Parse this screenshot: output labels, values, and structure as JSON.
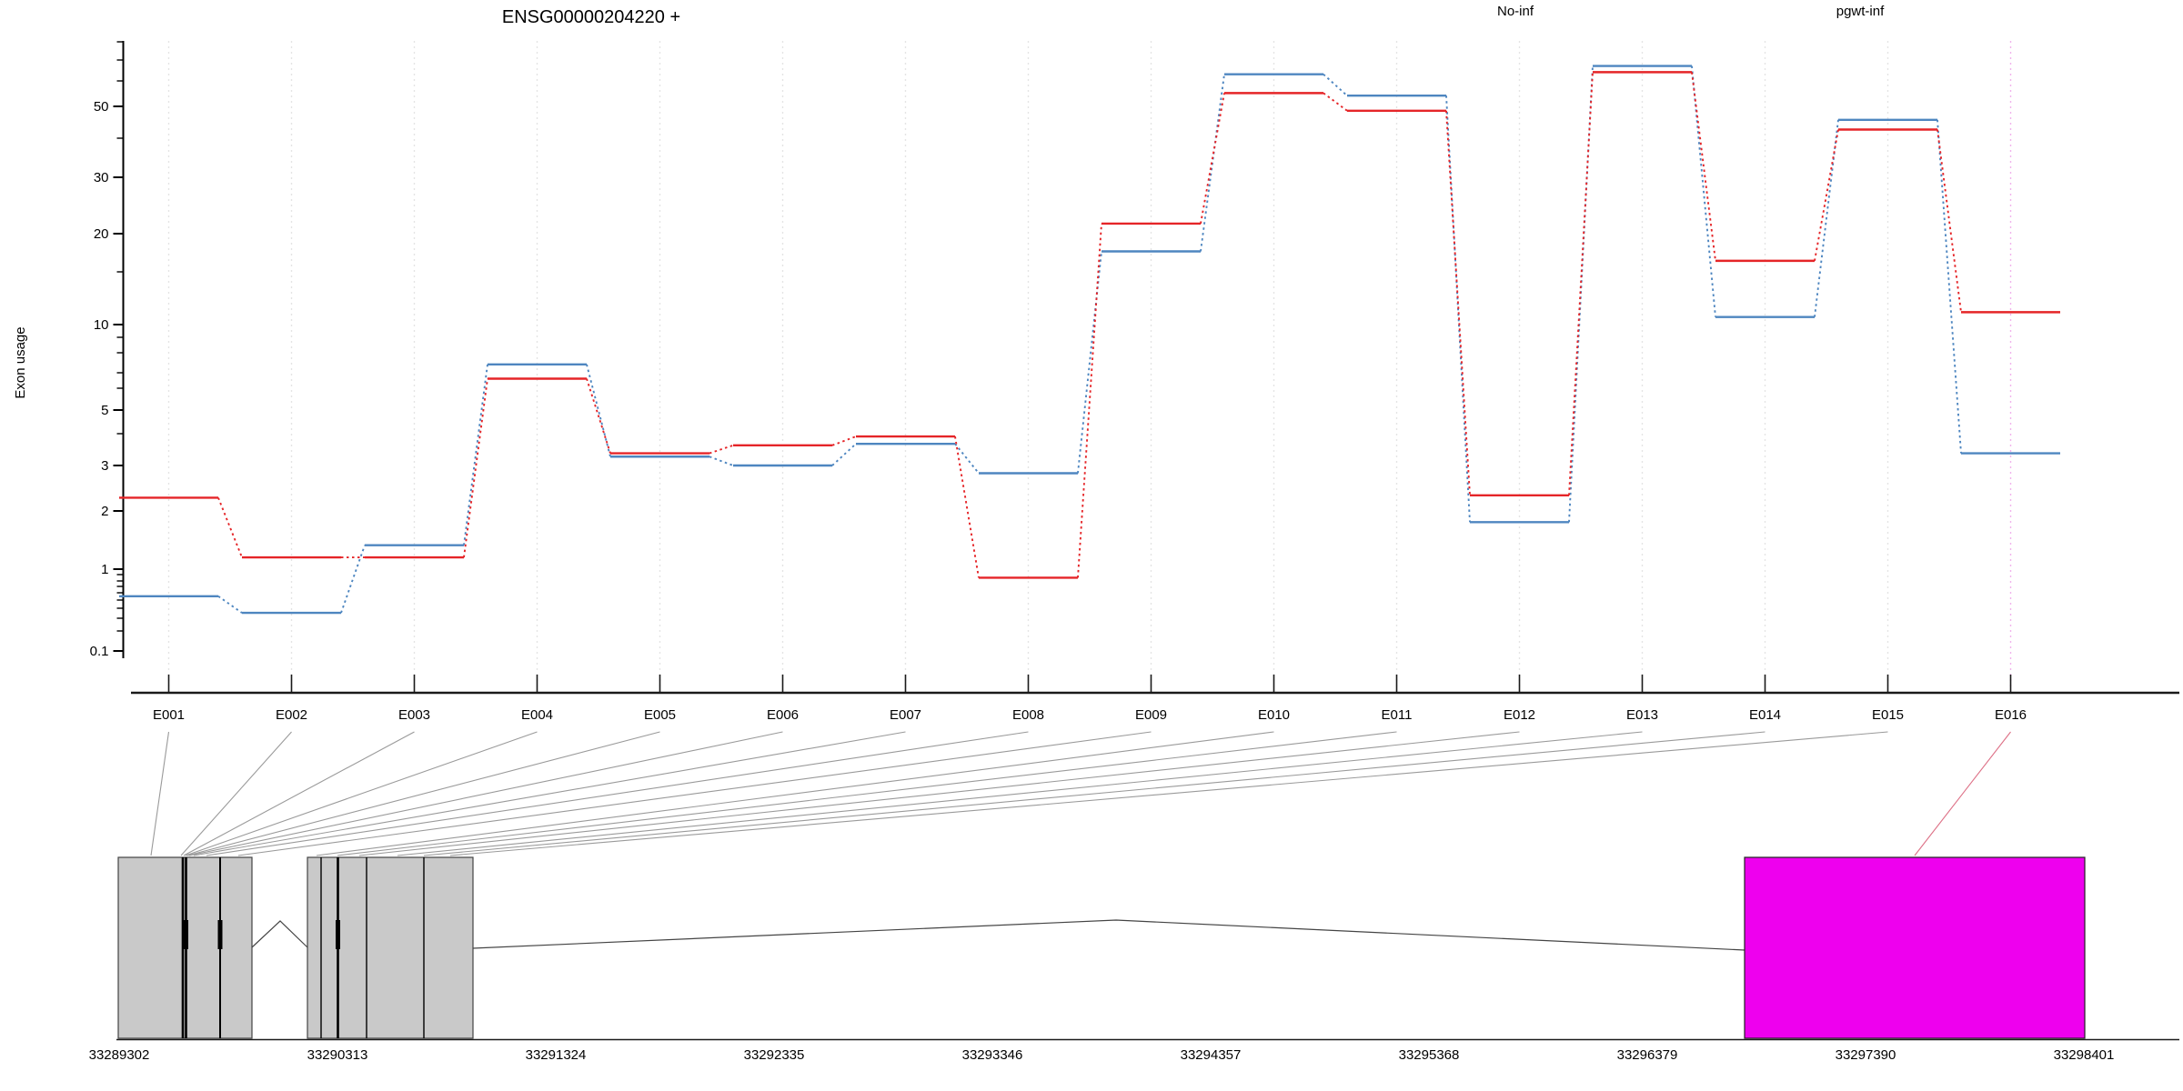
{
  "title": "ENSG00000204220 +",
  "legend": {
    "items": [
      {
        "label": "No-inf",
        "color": "#e52528"
      },
      {
        "label": "pgwt-inf",
        "color": "#4e86c0"
      }
    ]
  },
  "chart_data": {
    "type": "line",
    "subtype": "step-fitted-exon-usage",
    "title": "ENSG00000204220 +",
    "strand": "+",
    "xlabel": "",
    "ylabel": "Exon usage",
    "yscale": "log-like",
    "ylim": [
      0.1,
      80
    ],
    "y_ticks_major": [
      0.1,
      1,
      2,
      3,
      5,
      10,
      20,
      30,
      50
    ],
    "y_ticks_minor": [
      0.2,
      0.3,
      0.4,
      0.5,
      0.6,
      0.7,
      0.8,
      0.9,
      4,
      6,
      7,
      8,
      9,
      15,
      40,
      60,
      70,
      80
    ],
    "categories": [
      "E001",
      "E002",
      "E003",
      "E004",
      "E005",
      "E006",
      "E007",
      "E008",
      "E009",
      "E010",
      "E011",
      "E012",
      "E013",
      "E014",
      "E015",
      "E016"
    ],
    "series": [
      {
        "name": "No-inf",
        "color": "#e52528",
        "values": [
          2.25,
          1.15,
          1.15,
          6.6,
          3.35,
          3.6,
          3.9,
          0.85,
          21.5,
          55,
          48.5,
          2.3,
          64,
          16.3,
          42.5,
          11
        ]
      },
      {
        "name": "pgwt-inf",
        "color": "#4e86c0",
        "values": [
          0.55,
          0.35,
          1.33,
          7.4,
          3.25,
          3.0,
          3.65,
          2.8,
          17.5,
          63,
          54,
          1.75,
          67,
          10.6,
          45.5,
          3.35
        ]
      }
    ],
    "highlighted_category": "E016",
    "grid": "vertical-dotted-per-exon",
    "legend_position": "top-right"
  },
  "gene_model": {
    "exon_fill": "#c9c9c9",
    "highlight_fill": "#ee00ee",
    "highlighted_exon": "E016",
    "axis_labels": [
      "33289302",
      "33290313",
      "33291324",
      "33292335",
      "33293346",
      "33294357",
      "33295368",
      "33296379",
      "33297390",
      "33298401"
    ]
  }
}
